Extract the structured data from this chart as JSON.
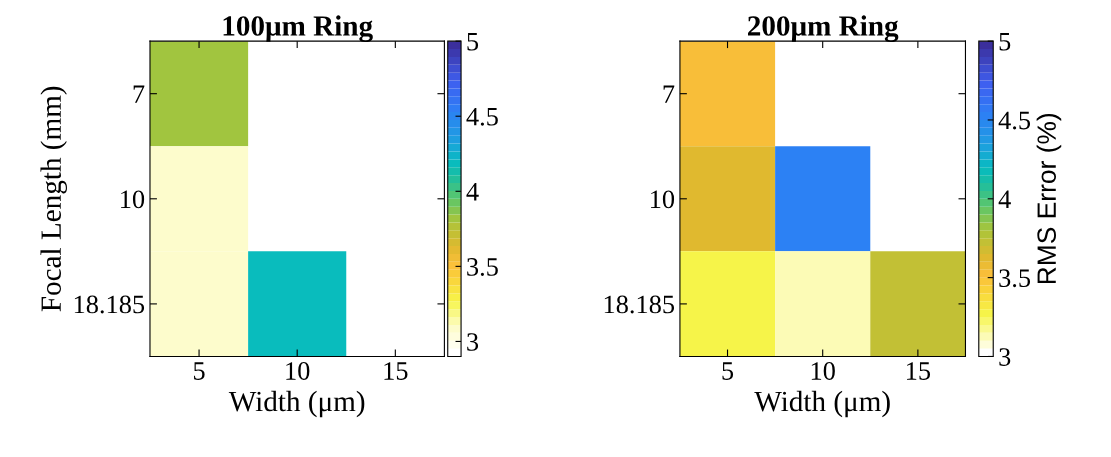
{
  "chart_data": [
    {
      "type": "heatmap",
      "title": "100μm Ring",
      "xlabel": "Width (μm)",
      "ylabel": "Focal Length (mm)",
      "categories": [
        "5",
        "10",
        "15"
      ],
      "y_categories": [
        "7",
        "10",
        "18.185"
      ],
      "cells": [
        [
          3.8,
          null,
          null
        ],
        [
          3.1,
          null,
          null
        ],
        [
          3.1,
          4.2,
          null
        ]
      ],
      "clim": [
        2.9,
        5
      ],
      "cticks": [
        3,
        3.5,
        4,
        4.5,
        5
      ]
    },
    {
      "type": "heatmap",
      "title": "200μm Ring",
      "xlabel": "Width (μm)",
      "clabel": "RMS Error (%)",
      "categories": [
        "5",
        "10",
        "15"
      ],
      "y_categories": [
        "7",
        "10",
        "18.185"
      ],
      "cells": [
        [
          3.5,
          null,
          null
        ],
        [
          3.62,
          4.55,
          null
        ],
        [
          3.25,
          3.1,
          3.7
        ]
      ],
      "clim": [
        3,
        5
      ],
      "cticks": [
        3,
        3.5,
        4,
        4.5,
        5
      ]
    }
  ]
}
